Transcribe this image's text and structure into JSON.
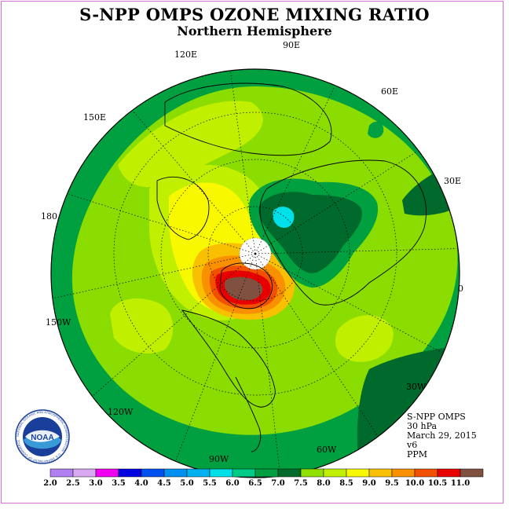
{
  "title": "S-NPP OMPS OZONE MIXING RATIO",
  "subtitle": "Northern Hemisphere",
  "longitude_labels": {
    "lon_90e": "90E",
    "lon_120e": "120E",
    "lon_60e": "60E",
    "lon_150e": "150E",
    "lon_30e": "30E",
    "lon_180": "180",
    "lon_0": "0",
    "lon_150w": "150W",
    "lon_30w": "30W",
    "lon_120w": "120W",
    "lon_60w": "60W",
    "lon_90w": "90W"
  },
  "info": {
    "instrument": "S-NPP OMPS",
    "pressure_level": "30 hPa",
    "date": "March 29, 2015",
    "version": "v6",
    "units": "PPM"
  },
  "logo_text": "NOAA",
  "logo_ring_text": "NATIONAL OCEANIC AND ATMOSPHERIC ADMINISTRATION · U.S. DEPARTMENT OF COMMERCE",
  "colorbar": {
    "labels": [
      "2.0",
      "2.5",
      "3.0",
      "3.5",
      "4.0",
      "4.5",
      "5.0",
      "5.5",
      "6.0",
      "6.5",
      "7.0",
      "7.5",
      "8.0",
      "8.5",
      "9.0",
      "9.5",
      "10.0",
      "10.5",
      "11.0"
    ],
    "colors": [
      "#b080f0",
      "#d8a8f0",
      "#f000f0",
      "#0000e0",
      "#0050f0",
      "#0090f0",
      "#00b0f0",
      "#00e0e8",
      "#00cc88",
      "#00a040",
      "#006a2c",
      "#90e000",
      "#c0f000",
      "#f8f800",
      "#f8c000",
      "#f89000",
      "#f05000",
      "#e80000",
      "#805040"
    ]
  },
  "map_colors": {
    "ocean_background": "#8bdc00",
    "band_6_5": "#00a040",
    "band_7_0": "#006a2c",
    "band_8_0": "#c0f000",
    "band_8_5": "#f8f800",
    "band_9_0": "#f8c000",
    "band_9_5": "#f89000",
    "band_10_0": "#f05000",
    "band_10_5": "#e80000",
    "band_11_0": "#805040",
    "band_5_5": "#00e0e8",
    "no_data": "#ffffff"
  }
}
